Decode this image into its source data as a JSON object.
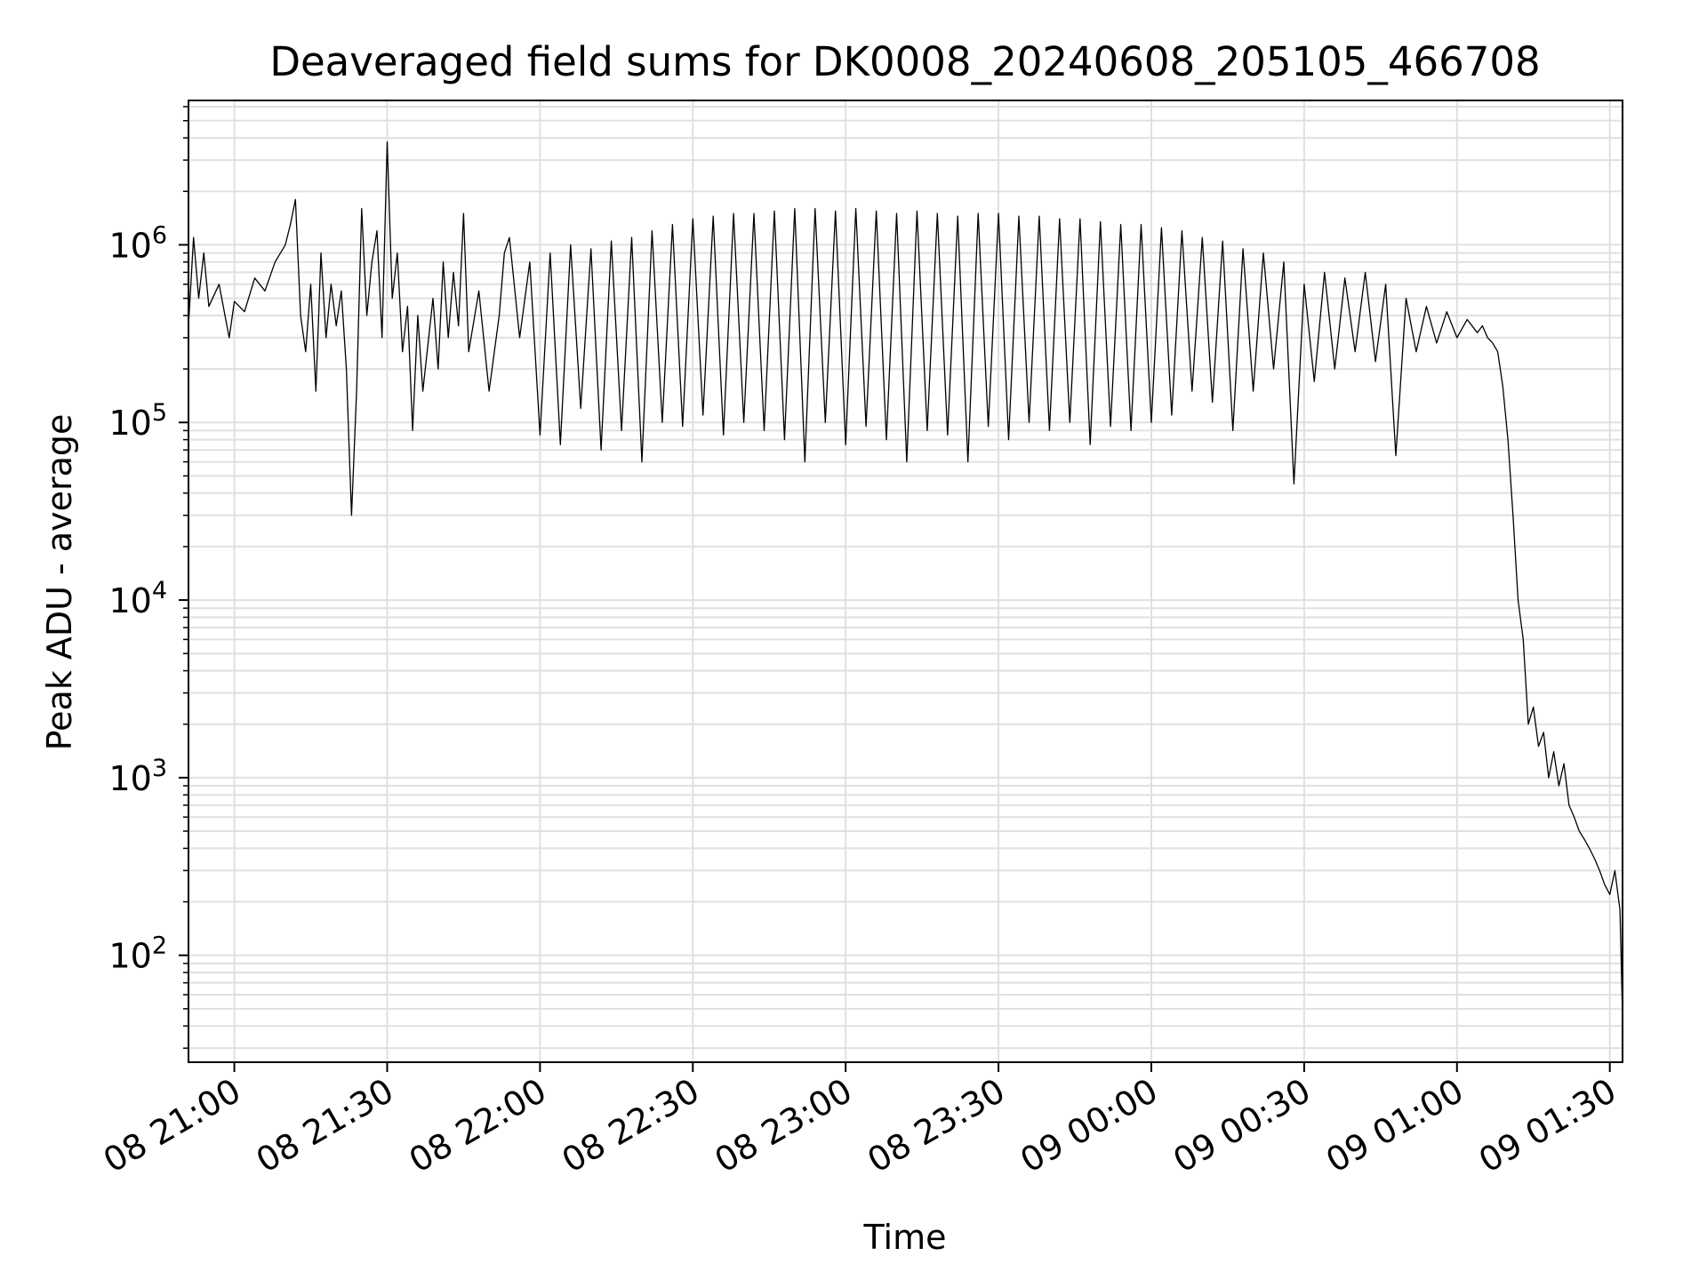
{
  "chart_data": {
    "type": "line",
    "title": "Deaveraged field sums for DK0008_20240608_205105_466708",
    "xlabel": "Time",
    "ylabel": "Peak ADU - average",
    "yscale": "log",
    "grid": true,
    "line_color": "#000000",
    "grid_color": "#e0e0e0",
    "xlim": [
      "2024-06-08 20:51:00",
      "2024-06-09 01:32:30"
    ],
    "ylim": [
      25,
      6500000
    ],
    "x_ticks": [
      {
        "t": "2024-06-08 21:00:00",
        "label": "08 21:00"
      },
      {
        "t": "2024-06-08 21:30:00",
        "label": "08 21:30"
      },
      {
        "t": "2024-06-08 22:00:00",
        "label": "08 22:00"
      },
      {
        "t": "2024-06-08 22:30:00",
        "label": "08 22:30"
      },
      {
        "t": "2024-06-08 23:00:00",
        "label": "08 23:00"
      },
      {
        "t": "2024-06-08 23:30:00",
        "label": "08 23:30"
      },
      {
        "t": "2024-06-09 00:00:00",
        "label": "09 00:00"
      },
      {
        "t": "2024-06-09 00:30:00",
        "label": "09 00:30"
      },
      {
        "t": "2024-06-09 01:00:00",
        "label": "09 01:00"
      },
      {
        "t": "2024-06-09 01:30:00",
        "label": "09 01:30"
      }
    ],
    "y_ticks": [
      {
        "v": 100,
        "base": "10",
        "exp": "2"
      },
      {
        "v": 1000,
        "base": "10",
        "exp": "3"
      },
      {
        "v": 10000,
        "base": "10",
        "exp": "4"
      },
      {
        "v": 100000,
        "base": "10",
        "exp": "5"
      },
      {
        "v": 1000000,
        "base": "10",
        "exp": "6"
      }
    ],
    "series": [
      {
        "x": [
          "2024-06-08 20:51:00",
          "2024-06-08 20:52:00",
          "2024-06-08 20:53:00",
          "2024-06-08 20:54:00",
          "2024-06-08 20:55:00",
          "2024-06-08 20:57:00",
          "2024-06-08 20:59:00",
          "2024-06-08 21:00:00",
          "2024-06-08 21:02:00",
          "2024-06-08 21:04:00",
          "2024-06-08 21:06:00",
          "2024-06-08 21:08:00",
          "2024-06-08 21:10:00",
          "2024-06-08 21:11:00",
          "2024-06-08 21:12:00",
          "2024-06-08 21:13:00",
          "2024-06-08 21:14:00",
          "2024-06-08 21:15:00",
          "2024-06-08 21:16:00",
          "2024-06-08 21:17:00",
          "2024-06-08 21:18:00",
          "2024-06-08 21:19:00",
          "2024-06-08 21:20:00",
          "2024-06-08 21:21:00",
          "2024-06-08 21:22:00",
          "2024-06-08 21:23:00",
          "2024-06-08 21:24:00",
          "2024-06-08 21:25:00",
          "2024-06-08 21:26:00",
          "2024-06-08 21:27:00",
          "2024-06-08 21:28:00",
          "2024-06-08 21:29:00",
          "2024-06-08 21:30:00",
          "2024-06-08 21:31:00",
          "2024-06-08 21:32:00",
          "2024-06-08 21:33:00",
          "2024-06-08 21:34:00",
          "2024-06-08 21:35:00",
          "2024-06-08 21:36:00",
          "2024-06-08 21:37:00",
          "2024-06-08 21:39:00",
          "2024-06-08 21:40:00",
          "2024-06-08 21:41:00",
          "2024-06-08 21:42:00",
          "2024-06-08 21:43:00",
          "2024-06-08 21:44:00",
          "2024-06-08 21:45:00",
          "2024-06-08 21:46:00",
          "2024-06-08 21:48:00",
          "2024-06-08 21:50:00",
          "2024-06-08 21:52:00",
          "2024-06-08 21:53:00",
          "2024-06-08 21:54:00",
          "2024-06-08 21:56:00",
          "2024-06-08 21:58:00",
          "2024-06-08 22:00:00",
          "2024-06-08 22:02:00",
          "2024-06-08 22:04:00",
          "2024-06-08 22:06:00",
          "2024-06-08 22:08:00",
          "2024-06-08 22:10:00",
          "2024-06-08 22:12:00",
          "2024-06-08 22:14:00",
          "2024-06-08 22:16:00",
          "2024-06-08 22:18:00",
          "2024-06-08 22:20:00",
          "2024-06-08 22:22:00",
          "2024-06-08 22:24:00",
          "2024-06-08 22:26:00",
          "2024-06-08 22:28:00",
          "2024-06-08 22:30:00",
          "2024-06-08 22:32:00",
          "2024-06-08 22:34:00",
          "2024-06-08 22:36:00",
          "2024-06-08 22:38:00",
          "2024-06-08 22:40:00",
          "2024-06-08 22:42:00",
          "2024-06-08 22:44:00",
          "2024-06-08 22:46:00",
          "2024-06-08 22:48:00",
          "2024-06-08 22:50:00",
          "2024-06-08 22:52:00",
          "2024-06-08 22:54:00",
          "2024-06-08 22:56:00",
          "2024-06-08 22:58:00",
          "2024-06-08 23:00:00",
          "2024-06-08 23:02:00",
          "2024-06-08 23:04:00",
          "2024-06-08 23:06:00",
          "2024-06-08 23:08:00",
          "2024-06-08 23:10:00",
          "2024-06-08 23:12:00",
          "2024-06-08 23:14:00",
          "2024-06-08 23:16:00",
          "2024-06-08 23:18:00",
          "2024-06-08 23:20:00",
          "2024-06-08 23:22:00",
          "2024-06-08 23:24:00",
          "2024-06-08 23:26:00",
          "2024-06-08 23:28:00",
          "2024-06-08 23:30:00",
          "2024-06-08 23:32:00",
          "2024-06-08 23:34:00",
          "2024-06-08 23:36:00",
          "2024-06-08 23:38:00",
          "2024-06-08 23:40:00",
          "2024-06-08 23:42:00",
          "2024-06-08 23:44:00",
          "2024-06-08 23:46:00",
          "2024-06-08 23:48:00",
          "2024-06-08 23:50:00",
          "2024-06-08 23:52:00",
          "2024-06-08 23:54:00",
          "2024-06-08 23:56:00",
          "2024-06-08 23:58:00",
          "2024-06-09 00:00:00",
          "2024-06-09 00:02:00",
          "2024-06-09 00:04:00",
          "2024-06-09 00:06:00",
          "2024-06-09 00:08:00",
          "2024-06-09 00:10:00",
          "2024-06-09 00:12:00",
          "2024-06-09 00:14:00",
          "2024-06-09 00:16:00",
          "2024-06-09 00:18:00",
          "2024-06-09 00:20:00",
          "2024-06-09 00:22:00",
          "2024-06-09 00:24:00",
          "2024-06-09 00:26:00",
          "2024-06-09 00:28:00",
          "2024-06-09 00:30:00",
          "2024-06-09 00:32:00",
          "2024-06-09 00:34:00",
          "2024-06-09 00:36:00",
          "2024-06-09 00:38:00",
          "2024-06-09 00:40:00",
          "2024-06-09 00:42:00",
          "2024-06-09 00:44:00",
          "2024-06-09 00:46:00",
          "2024-06-09 00:48:00",
          "2024-06-09 00:50:00",
          "2024-06-09 00:52:00",
          "2024-06-09 00:54:00",
          "2024-06-09 00:56:00",
          "2024-06-09 00:58:00",
          "2024-06-09 01:00:00",
          "2024-06-09 01:02:00",
          "2024-06-09 01:04:00",
          "2024-06-09 01:05:00",
          "2024-06-09 01:06:00",
          "2024-06-09 01:07:00",
          "2024-06-09 01:08:00",
          "2024-06-09 01:09:00",
          "2024-06-09 01:10:00",
          "2024-06-09 01:11:00",
          "2024-06-09 01:12:00",
          "2024-06-09 01:13:00",
          "2024-06-09 01:14:00",
          "2024-06-09 01:15:00",
          "2024-06-09 01:16:00",
          "2024-06-09 01:17:00",
          "2024-06-09 01:18:00",
          "2024-06-09 01:19:00",
          "2024-06-09 01:20:00",
          "2024-06-09 01:21:00",
          "2024-06-09 01:22:00",
          "2024-06-09 01:23:00",
          "2024-06-09 01:24:00",
          "2024-06-09 01:25:00",
          "2024-06-09 01:26:00",
          "2024-06-09 01:27:00",
          "2024-06-09 01:28:00",
          "2024-06-09 01:29:00",
          "2024-06-09 01:30:00",
          "2024-06-09 01:31:00",
          "2024-06-09 01:32:00",
          "2024-06-09 01:32:30"
        ],
        "y": [
          350000,
          1100000,
          500000,
          900000,
          450000,
          600000,
          300000,
          480000,
          420000,
          650000,
          550000,
          800000,
          1000000,
          1300000,
          1800000,
          400000,
          250000,
          600000,
          150000,
          900000,
          300000,
          600000,
          350000,
          550000,
          200000,
          30000,
          150000,
          1600000,
          400000,
          800000,
          1200000,
          300000,
          3800000,
          500000,
          900000,
          250000,
          450000,
          90000,
          400000,
          150000,
          500000,
          200000,
          800000,
          300000,
          700000,
          350000,
          1500000,
          250000,
          550000,
          150000,
          400000,
          900000,
          1100000,
          300000,
          800000,
          85000,
          900000,
          75000,
          1000000,
          120000,
          950000,
          70000,
          1050000,
          90000,
          1100000,
          60000,
          1200000,
          100000,
          1300000,
          95000,
          1400000,
          110000,
          1450000,
          85000,
          1500000,
          100000,
          1500000,
          90000,
          1550000,
          80000,
          1600000,
          60000,
          1600000,
          100000,
          1550000,
          75000,
          1600000,
          95000,
          1550000,
          80000,
          1500000,
          60000,
          1550000,
          90000,
          1500000,
          85000,
          1450000,
          60000,
          1500000,
          95000,
          1500000,
          80000,
          1450000,
          100000,
          1450000,
          90000,
          1400000,
          100000,
          1400000,
          75000,
          1350000,
          95000,
          1300000,
          90000,
          1300000,
          100000,
          1250000,
          110000,
          1200000,
          150000,
          1100000,
          130000,
          1050000,
          90000,
          950000,
          150000,
          900000,
          200000,
          800000,
          45000,
          600000,
          170000,
          700000,
          200000,
          650000,
          250000,
          700000,
          220000,
          600000,
          65000,
          500000,
          250000,
          450000,
          280000,
          420000,
          300000,
          380000,
          320000,
          350000,
          300000,
          280000,
          250000,
          160000,
          80000,
          30000,
          10000,
          6000,
          2000,
          2500,
          1500,
          1800,
          1000,
          1400,
          900,
          1200,
          700,
          600,
          500,
          450,
          400,
          350,
          300,
          250,
          220,
          300,
          180,
          45
        ]
      }
    ]
  }
}
